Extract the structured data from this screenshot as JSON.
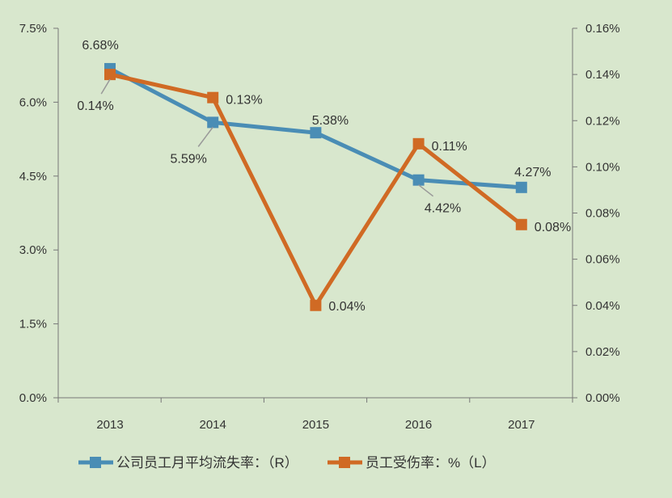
{
  "chart_data": {
    "type": "line",
    "categories": [
      "2013",
      "2014",
      "2015",
      "2016",
      "2017"
    ],
    "y_left": {
      "range": [
        0,
        7.5
      ],
      "ticks": [
        "0.0%",
        "1.5%",
        "3.0%",
        "4.5%",
        "6.0%",
        "7.5%"
      ],
      "tick_values": [
        0,
        1.5,
        3.0,
        4.5,
        6.0,
        7.5
      ]
    },
    "y_right": {
      "range": [
        0,
        0.16
      ],
      "ticks": [
        "0.00%",
        "0.02%",
        "0.04%",
        "0.06%",
        "0.08%",
        "0.10%",
        "0.12%",
        "0.14%",
        "0.16%"
      ],
      "tick_values": [
        0,
        0.02,
        0.04,
        0.06,
        0.08,
        0.1,
        0.12,
        0.14,
        0.16
      ]
    },
    "grid": false,
    "legend_position": "bottom",
    "series": [
      {
        "name": "公司员工月平均流失率：（R）",
        "axis": "left",
        "color": "#4a8db5",
        "values": [
          6.68,
          5.59,
          5.38,
          4.42,
          4.27
        ],
        "labels": [
          "6.68%",
          "5.59%",
          "5.38%",
          "4.42%",
          "4.27%"
        ]
      },
      {
        "name": "员工受伤率：%（L）",
        "axis": "right",
        "color": "#d06a24",
        "values": [
          0.14,
          0.13,
          0.04,
          0.11,
          0.075
        ],
        "labels": [
          "0.14%",
          "0.13%",
          "0.04%",
          "0.11%",
          "0.08%"
        ]
      }
    ]
  }
}
